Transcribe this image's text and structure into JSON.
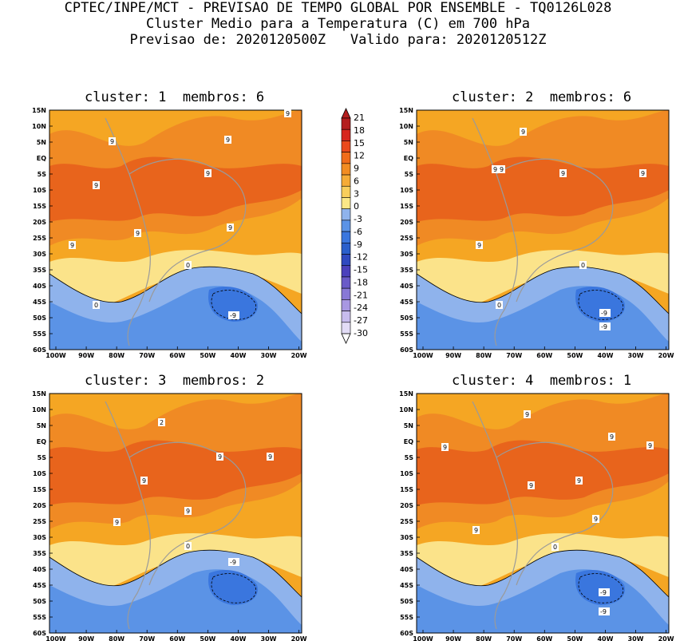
{
  "header": {
    "line1": "CPTEC/INPE/MCT - PREVISAO DE TEMPO GLOBAL POR ENSEMBLE - TQ0126L028",
    "line2": "Cluster Medio para a Temperatura (C) em 700 hPa",
    "line3": "Previsao de: 2020120500Z   Valido para: 2020120512Z"
  },
  "panels": [
    {
      "title": "cluster: 1  membros: 6",
      "labels": [
        "9",
        "9",
        "9",
        "9",
        "9",
        "9",
        "9",
        "9",
        "0",
        "0",
        "-9"
      ]
    },
    {
      "title": "cluster: 2  membros: 6",
      "labels": [
        "9",
        "9",
        "9",
        "9",
        "9",
        "9",
        "0",
        "0",
        "-9",
        "-9"
      ]
    },
    {
      "title": "cluster: 3  membros: 2",
      "labels": [
        "2",
        "9",
        "9",
        "9",
        "9",
        "9",
        "0",
        "-9"
      ]
    },
    {
      "title": "cluster: 4  membros: 1",
      "labels": [
        "9",
        "9",
        "9",
        "9",
        "9",
        "9",
        "9",
        "9",
        "0",
        "-9",
        "-9"
      ]
    }
  ],
  "axes": {
    "lat_labels": [
      "15N",
      "10N",
      "5N",
      "EQ",
      "5S",
      "10S",
      "15S",
      "20S",
      "25S",
      "30S",
      "35S",
      "40S",
      "45S",
      "50S",
      "55S",
      "60S"
    ],
    "lon_labels": [
      "100W",
      "90W",
      "80W",
      "70W",
      "60W",
      "50W",
      "40W",
      "30W",
      "20W"
    ]
  },
  "colorbar": {
    "labels": [
      "21",
      "18",
      "15",
      "12",
      "9",
      "6",
      "3",
      "0",
      "-3",
      "-6",
      "-9",
      "-12",
      "-15",
      "-18",
      "-21",
      "-24",
      "-27",
      "-30"
    ],
    "colors": [
      "#b41e1e",
      "#d7261e",
      "#ea4a1c",
      "#f06c1a",
      "#f28c22",
      "#f5ab37",
      "#f8ce5c",
      "#fbe887",
      "#8fb3ec",
      "#5b93e6",
      "#3a76de",
      "#2a5fcc",
      "#2f49c0",
      "#4b40bc",
      "#6a5ac8",
      "#8878d6",
      "#a898e2",
      "#c7bcee",
      "#e2dcf6"
    ]
  },
  "style": {
    "warm1": "#f5a623",
    "warm2": "#f08a24",
    "warm3": "#e8641c",
    "warm4": "#e04a1a",
    "yellow": "#fbe38a",
    "cold1": "#8fb3ec",
    "cold2": "#5b93e6",
    "cold3": "#3a76de"
  }
}
